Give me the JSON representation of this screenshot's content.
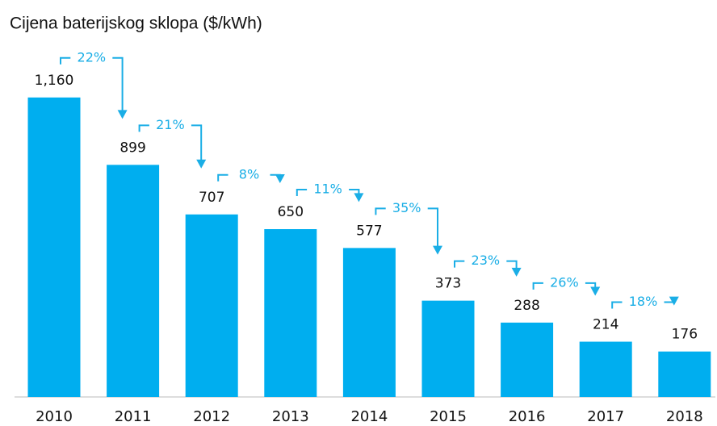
{
  "chart_data": {
    "type": "bar",
    "title": "Cijena baterijskog sklopa ($/kWh)",
    "categories": [
      "2010",
      "2011",
      "2012",
      "2013",
      "2014",
      "2015",
      "2016",
      "2017",
      "2018"
    ],
    "values": [
      1160,
      899,
      707,
      650,
      577,
      373,
      288,
      214,
      176
    ],
    "value_labels": [
      "1,160",
      "899",
      "707",
      "650",
      "577",
      "373",
      "288",
      "214",
      "176"
    ],
    "annotations": [
      "22%",
      "21%",
      "8%",
      "11%",
      "35%",
      "23%",
      "26%",
      "18%"
    ],
    "color": "#00aeef",
    "annotation_color": "#1aaee6",
    "ylim": [
      0,
      1200
    ]
  }
}
